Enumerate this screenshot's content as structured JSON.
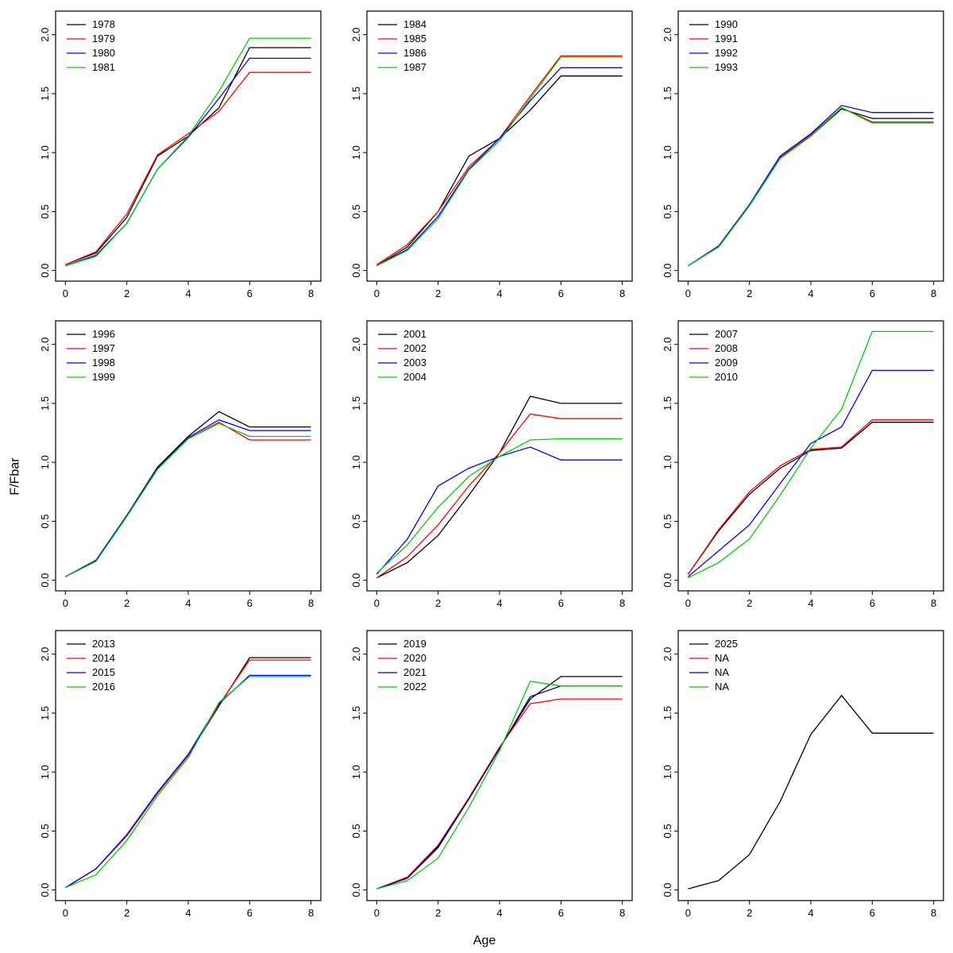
{
  "figure": {
    "xlabel": "Age",
    "ylabel": "F/Fbar",
    "x_ticks": [
      0,
      2,
      4,
      6,
      8
    ],
    "y_ticks": [
      "0.0",
      "0.5",
      "1.0",
      "1.5",
      "2.0"
    ],
    "xlim": [
      -0.32,
      8.32
    ],
    "ylim": [
      -0.09,
      2.2
    ],
    "grid": "off",
    "legend_position": "topleft",
    "panel_layout": "3x3"
  },
  "chart_data": [
    {
      "type": "line",
      "x": [
        0,
        1,
        2,
        3,
        4,
        5,
        6,
        7,
        8
      ],
      "series": [
        {
          "name": "1978",
          "color": "#000000",
          "values": [
            0.05,
            0.15,
            0.45,
            0.97,
            1.14,
            1.38,
            1.89,
            1.89,
            1.89
          ]
        },
        {
          "name": "1979",
          "color": "#FF0000",
          "values": [
            0.05,
            0.16,
            0.48,
            0.98,
            1.16,
            1.35,
            1.68,
            1.68,
            1.68
          ]
        },
        {
          "name": "1980",
          "color": "#0000FF",
          "values": [
            0.04,
            0.13,
            0.4,
            0.86,
            1.13,
            1.46,
            1.8,
            1.8,
            1.8
          ]
        },
        {
          "name": "1981",
          "color": "#00CC00",
          "values": [
            0.04,
            0.12,
            0.4,
            0.86,
            1.14,
            1.52,
            1.97,
            1.97,
            1.97
          ]
        }
      ]
    },
    {
      "type": "line",
      "x": [
        0,
        1,
        2,
        3,
        4,
        5,
        6,
        7,
        8
      ],
      "series": [
        {
          "name": "1984",
          "color": "#000000",
          "values": [
            0.04,
            0.2,
            0.5,
            0.97,
            1.12,
            1.36,
            1.65,
            1.65,
            1.65
          ]
        },
        {
          "name": "1985",
          "color": "#FF0000",
          "values": [
            0.05,
            0.22,
            0.5,
            0.88,
            1.12,
            1.48,
            1.82,
            1.82,
            1.82
          ]
        },
        {
          "name": "1986",
          "color": "#0000FF",
          "values": [
            0.04,
            0.18,
            0.46,
            0.86,
            1.12,
            1.44,
            1.72,
            1.72,
            1.72
          ]
        },
        {
          "name": "1987",
          "color": "#00CC00",
          "values": [
            0.04,
            0.17,
            0.44,
            0.85,
            1.1,
            1.46,
            1.81,
            1.81,
            1.81
          ]
        }
      ]
    },
    {
      "type": "line",
      "x": [
        0,
        1,
        2,
        3,
        4,
        5,
        6,
        7,
        8
      ],
      "series": [
        {
          "name": "1990",
          "color": "#000000",
          "values": [
            0.04,
            0.2,
            0.55,
            0.95,
            1.14,
            1.37,
            1.29,
            1.29,
            1.29
          ]
        },
        {
          "name": "1991",
          "color": "#FF0000",
          "values": [
            0.04,
            0.2,
            0.55,
            0.96,
            1.15,
            1.38,
            1.26,
            1.26,
            1.26
          ]
        },
        {
          "name": "1992",
          "color": "#0000FF",
          "values": [
            0.04,
            0.21,
            0.56,
            0.97,
            1.16,
            1.4,
            1.34,
            1.34,
            1.34
          ]
        },
        {
          "name": "1993",
          "color": "#00CC00",
          "values": [
            0.04,
            0.2,
            0.55,
            0.95,
            1.14,
            1.38,
            1.25,
            1.25,
            1.25
          ]
        }
      ]
    },
    {
      "type": "line",
      "x": [
        0,
        1,
        2,
        3,
        4,
        5,
        6,
        7,
        8
      ],
      "series": [
        {
          "name": "1996",
          "color": "#000000",
          "values": [
            0.03,
            0.17,
            0.55,
            0.96,
            1.22,
            1.43,
            1.3,
            1.3,
            1.3
          ]
        },
        {
          "name": "1997",
          "color": "#FF0000",
          "values": [
            0.03,
            0.17,
            0.55,
            0.95,
            1.2,
            1.34,
            1.19,
            1.19,
            1.19
          ]
        },
        {
          "name": "1998",
          "color": "#0000FF",
          "values": [
            0.03,
            0.17,
            0.55,
            0.95,
            1.21,
            1.36,
            1.27,
            1.27,
            1.27
          ]
        },
        {
          "name": "1999",
          "color": "#00CC00",
          "values": [
            0.03,
            0.16,
            0.54,
            0.94,
            1.2,
            1.33,
            1.22,
            1.22,
            1.22
          ]
        }
      ]
    },
    {
      "type": "line",
      "x": [
        0,
        1,
        2,
        3,
        4,
        5,
        6,
        7,
        8
      ],
      "series": [
        {
          "name": "2001",
          "color": "#000000",
          "values": [
            0.02,
            0.15,
            0.38,
            0.72,
            1.08,
            1.56,
            1.5,
            1.5,
            1.5
          ]
        },
        {
          "name": "2002",
          "color": "#FF0000",
          "values": [
            0.02,
            0.2,
            0.47,
            0.8,
            1.08,
            1.41,
            1.37,
            1.37,
            1.37
          ]
        },
        {
          "name": "2003",
          "color": "#0000FF",
          "values": [
            0.05,
            0.35,
            0.8,
            0.95,
            1.05,
            1.13,
            1.02,
            1.02,
            1.02
          ]
        },
        {
          "name": "2004",
          "color": "#00CC00",
          "values": [
            0.06,
            0.3,
            0.62,
            0.88,
            1.05,
            1.19,
            1.2,
            1.2,
            1.2
          ]
        }
      ]
    },
    {
      "type": "line",
      "x": [
        0,
        1,
        2,
        3,
        4,
        5,
        6,
        7,
        8
      ],
      "series": [
        {
          "name": "2007",
          "color": "#000000",
          "values": [
            0.05,
            0.42,
            0.73,
            0.95,
            1.1,
            1.12,
            1.34,
            1.34,
            1.34
          ]
        },
        {
          "name": "2008",
          "color": "#FF0000",
          "values": [
            0.05,
            0.43,
            0.75,
            0.97,
            1.11,
            1.13,
            1.36,
            1.36,
            1.36
          ]
        },
        {
          "name": "2009",
          "color": "#0000FF",
          "values": [
            0.03,
            0.25,
            0.47,
            0.82,
            1.16,
            1.3,
            1.78,
            1.78,
            1.78
          ]
        },
        {
          "name": "2010",
          "color": "#00CC00",
          "values": [
            0.02,
            0.15,
            0.35,
            0.72,
            1.12,
            1.45,
            2.11,
            2.11,
            2.11
          ]
        }
      ]
    },
    {
      "type": "line",
      "x": [
        0,
        1,
        2,
        3,
        4,
        5,
        6,
        7,
        8
      ],
      "series": [
        {
          "name": "2013",
          "color": "#000000",
          "values": [
            0.02,
            0.18,
            0.46,
            0.82,
            1.14,
            1.56,
            1.97,
            1.97,
            1.97
          ]
        },
        {
          "name": "2014",
          "color": "#FF0000",
          "values": [
            0.02,
            0.18,
            0.46,
            0.82,
            1.14,
            1.57,
            1.95,
            1.95,
            1.95
          ]
        },
        {
          "name": "2015",
          "color": "#0000FF",
          "values": [
            0.02,
            0.18,
            0.47,
            0.83,
            1.15,
            1.58,
            1.82,
            1.82,
            1.82
          ]
        },
        {
          "name": "2016",
          "color": "#00CC00",
          "values": [
            0.02,
            0.13,
            0.42,
            0.8,
            1.12,
            1.59,
            1.81,
            1.81,
            1.81
          ]
        }
      ]
    },
    {
      "type": "line",
      "x": [
        0,
        1,
        2,
        3,
        4,
        5,
        6,
        7,
        8
      ],
      "series": [
        {
          "name": "2019",
          "color": "#000000",
          "values": [
            0.01,
            0.1,
            0.36,
            0.77,
            1.2,
            1.62,
            1.81,
            1.81,
            1.81
          ]
        },
        {
          "name": "2020",
          "color": "#FF0000",
          "values": [
            0.01,
            0.11,
            0.38,
            0.78,
            1.21,
            1.58,
            1.62,
            1.62,
            1.62
          ]
        },
        {
          "name": "2021",
          "color": "#000080",
          "values": [
            0.01,
            0.1,
            0.37,
            0.77,
            1.2,
            1.64,
            1.73,
            1.73,
            1.73
          ]
        },
        {
          "name": "2022",
          "color": "#00CC00",
          "values": [
            0.01,
            0.08,
            0.27,
            0.7,
            1.18,
            1.77,
            1.73,
            1.73,
            1.73
          ]
        }
      ]
    },
    {
      "type": "line",
      "x": [
        0,
        1,
        2,
        3,
        4,
        5,
        6,
        7,
        8
      ],
      "series": [
        {
          "name": "2025",
          "color": "#000000",
          "values": [
            0.01,
            0.08,
            0.3,
            0.75,
            1.32,
            1.65,
            1.33,
            1.33,
            1.33
          ]
        },
        {
          "name": "NA",
          "color": "#FF0000",
          "values": null
        },
        {
          "name": "NA",
          "color": "#000080",
          "values": null
        },
        {
          "name": "NA",
          "color": "#00CC00",
          "values": null
        }
      ]
    }
  ]
}
